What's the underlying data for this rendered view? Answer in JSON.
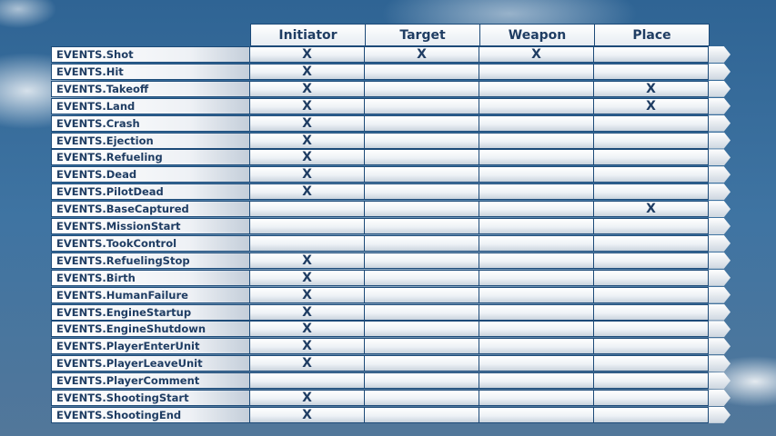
{
  "columns": [
    "Initiator",
    "Target",
    "Weapon",
    "Place"
  ],
  "mark": "X",
  "rows": [
    {
      "name": "EVENTS.Shot",
      "marks": [
        "X",
        "X",
        "X",
        ""
      ]
    },
    {
      "name": "EVENTS.Hit",
      "marks": [
        "X",
        "",
        "",
        ""
      ]
    },
    {
      "name": "EVENTS.Takeoff",
      "marks": [
        "X",
        "",
        "",
        "X"
      ]
    },
    {
      "name": "EVENTS.Land",
      "marks": [
        "X",
        "",
        "",
        "X"
      ]
    },
    {
      "name": "EVENTS.Crash",
      "marks": [
        "X",
        "",
        "",
        ""
      ]
    },
    {
      "name": "EVENTS.Ejection",
      "marks": [
        "X",
        "",
        "",
        ""
      ]
    },
    {
      "name": "EVENTS.Refueling",
      "marks": [
        "X",
        "",
        "",
        ""
      ]
    },
    {
      "name": "EVENTS.Dead",
      "marks": [
        "X",
        "",
        "",
        ""
      ]
    },
    {
      "name": "EVENTS.PilotDead",
      "marks": [
        "X",
        "",
        "",
        ""
      ]
    },
    {
      "name": "EVENTS.BaseCaptured",
      "marks": [
        "",
        "",
        "",
        "X"
      ]
    },
    {
      "name": "EVENTS.MissionStart",
      "marks": [
        "",
        "",
        "",
        ""
      ]
    },
    {
      "name": "EVENTS.TookControl",
      "marks": [
        "",
        "",
        "",
        ""
      ]
    },
    {
      "name": "EVENTS.RefuelingStop",
      "marks": [
        "X",
        "",
        "",
        ""
      ]
    },
    {
      "name": "EVENTS.Birth",
      "marks": [
        "X",
        "",
        "",
        ""
      ]
    },
    {
      "name": "EVENTS.HumanFailure",
      "marks": [
        "X",
        "",
        "",
        ""
      ]
    },
    {
      "name": "EVENTS.EngineStartup",
      "marks": [
        "X",
        "",
        "",
        ""
      ]
    },
    {
      "name": "EVENTS.EngineShutdown",
      "marks": [
        "X",
        "",
        "",
        ""
      ]
    },
    {
      "name": "EVENTS.PlayerEnterUnit",
      "marks": [
        "X",
        "",
        "",
        ""
      ]
    },
    {
      "name": "EVENTS.PlayerLeaveUnit",
      "marks": [
        "X",
        "",
        "",
        ""
      ]
    },
    {
      "name": "EVENTS.PlayerComment",
      "marks": [
        "",
        "",
        "",
        ""
      ]
    },
    {
      "name": "EVENTS.ShootingStart",
      "marks": [
        "X",
        "",
        "",
        ""
      ]
    },
    {
      "name": "EVENTS.ShootingEnd",
      "marks": [
        "X",
        "",
        "",
        ""
      ]
    }
  ]
}
